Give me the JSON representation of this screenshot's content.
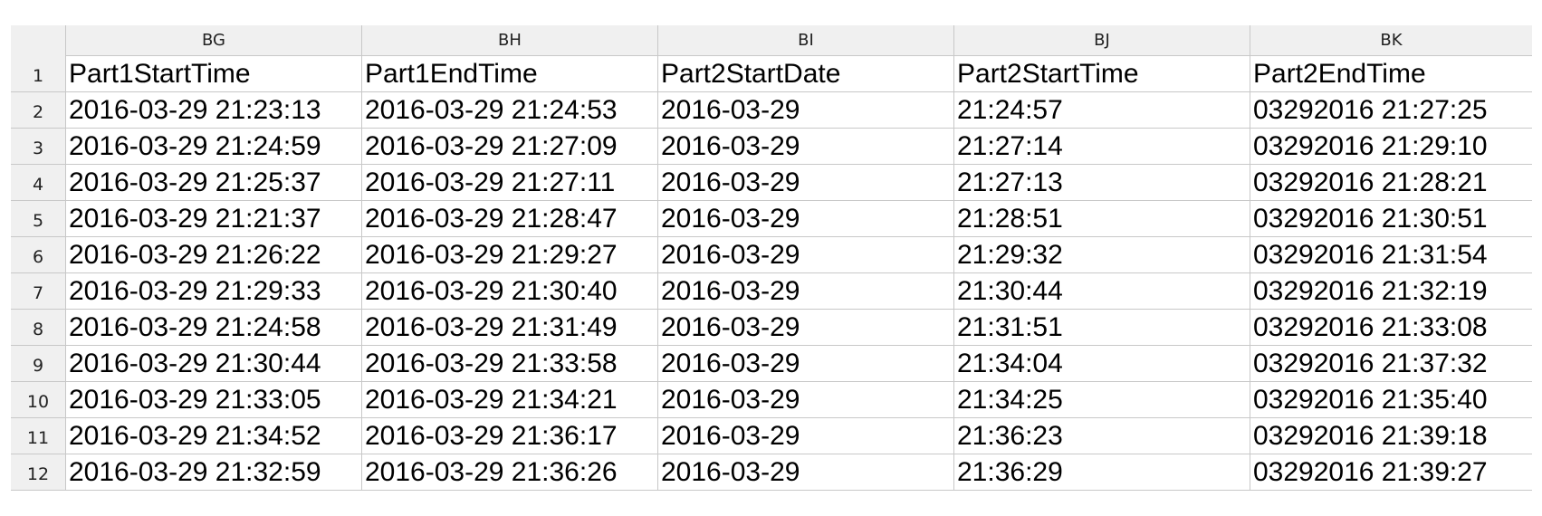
{
  "columns": [
    "BG",
    "BH",
    "BI",
    "BJ",
    "BK"
  ],
  "rows": [
    {
      "num": "1",
      "cells": [
        "Part1StartTime",
        "Part1EndTime",
        "Part2StartDate",
        "Part2StartTime",
        "Part2EndTime"
      ]
    },
    {
      "num": "2",
      "cells": [
        "2016-03-29 21:23:13",
        "2016-03-29 21:24:53",
        "2016-03-29",
        "21:24:57",
        "03292016 21:27:25"
      ]
    },
    {
      "num": "3",
      "cells": [
        "2016-03-29 21:24:59",
        "2016-03-29 21:27:09",
        "2016-03-29",
        "21:27:14",
        "03292016 21:29:10"
      ]
    },
    {
      "num": "4",
      "cells": [
        "2016-03-29 21:25:37",
        "2016-03-29 21:27:11",
        "2016-03-29",
        "21:27:13",
        "03292016 21:28:21"
      ]
    },
    {
      "num": "5",
      "cells": [
        "2016-03-29 21:21:37",
        "2016-03-29 21:28:47",
        "2016-03-29",
        "21:28:51",
        "03292016 21:30:51"
      ]
    },
    {
      "num": "6",
      "cells": [
        "2016-03-29 21:26:22",
        "2016-03-29 21:29:27",
        "2016-03-29",
        "21:29:32",
        "03292016 21:31:54"
      ]
    },
    {
      "num": "7",
      "cells": [
        "2016-03-29 21:29:33",
        "2016-03-29 21:30:40",
        "2016-03-29",
        "21:30:44",
        "03292016 21:32:19"
      ]
    },
    {
      "num": "8",
      "cells": [
        "2016-03-29 21:24:58",
        "2016-03-29 21:31:49",
        "2016-03-29",
        "21:31:51",
        "03292016 21:33:08"
      ]
    },
    {
      "num": "9",
      "cells": [
        "2016-03-29 21:30:44",
        "2016-03-29 21:33:58",
        "2016-03-29",
        "21:34:04",
        "03292016 21:37:32"
      ]
    },
    {
      "num": "10",
      "cells": [
        "2016-03-29 21:33:05",
        "2016-03-29 21:34:21",
        "2016-03-29",
        "21:34:25",
        "03292016 21:35:40"
      ]
    },
    {
      "num": "11",
      "cells": [
        "2016-03-29 21:34:52",
        "2016-03-29 21:36:17",
        "2016-03-29",
        "21:36:23",
        "03292016 21:39:18"
      ]
    },
    {
      "num": "12",
      "cells": [
        "2016-03-29 21:32:59",
        "2016-03-29 21:36:26",
        "2016-03-29",
        "21:36:29",
        "03292016 21:39:27"
      ]
    }
  ]
}
